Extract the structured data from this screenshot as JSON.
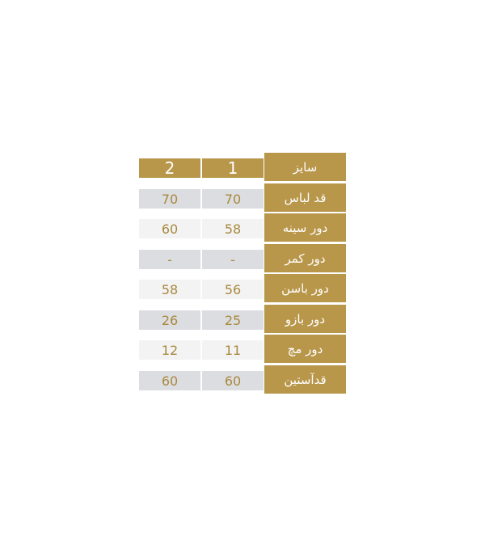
{
  "table": {
    "header": {
      "label": "سایز",
      "sizes": [
        "1",
        "2"
      ]
    },
    "rows": [
      {
        "label": "قد لباس",
        "values": [
          "70",
          "70"
        ]
      },
      {
        "label": "دور سینه",
        "values": [
          "58",
          "60"
        ]
      },
      {
        "label": "دور کمر",
        "values": [
          "-",
          "-"
        ]
      },
      {
        "label": "دور باسن",
        "values": [
          "56",
          "58"
        ]
      },
      {
        "label": "دور بازو",
        "values": [
          "25",
          "26"
        ]
      },
      {
        "label": "دور مچ",
        "values": [
          "11",
          "12"
        ]
      },
      {
        "label": "قدآستین",
        "values": [
          "60",
          "60"
        ]
      }
    ]
  },
  "colors": {
    "header": "#b8964a",
    "row_dark": "#dcdde0",
    "row_light": "#f3f3f3",
    "value_text": "#a8893f"
  }
}
